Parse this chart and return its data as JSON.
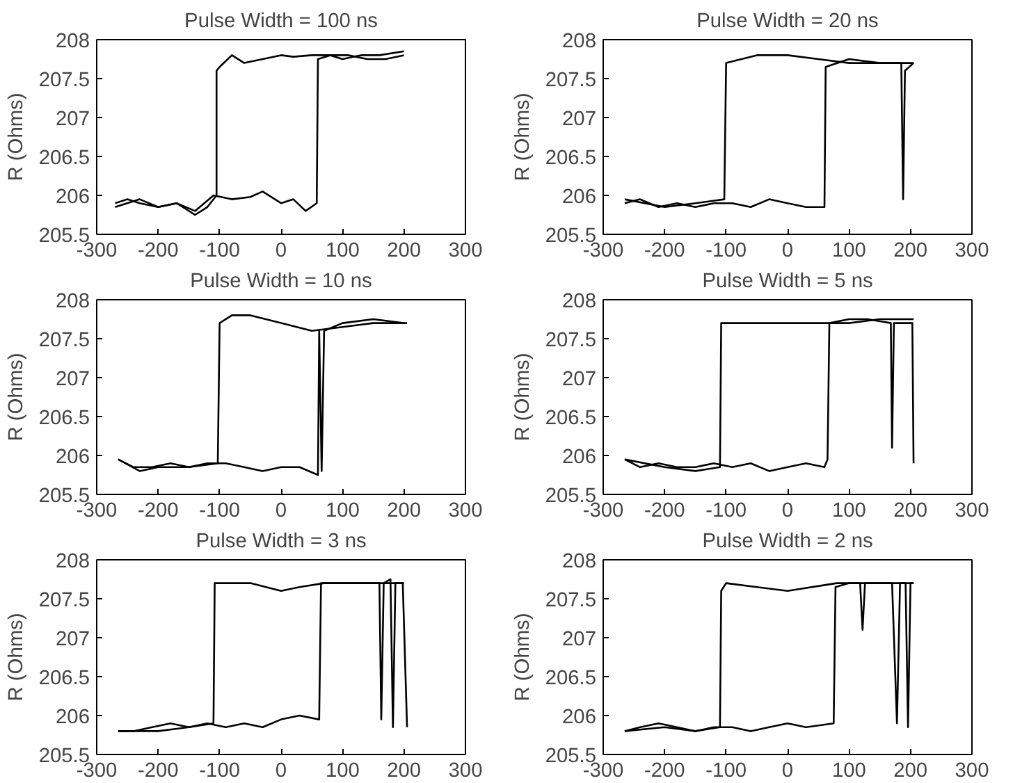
{
  "chart_data": [
    {
      "type": "line",
      "title": "Pulse Width = 100 ns",
      "ylabel": "R (Ohms)",
      "xlim": [
        -300,
        300
      ],
      "ylim": [
        205.5,
        208
      ],
      "xticks": [
        -300,
        -200,
        -100,
        0,
        100,
        200,
        300
      ],
      "yticks": [
        205.5,
        206,
        206.5,
        207,
        207.5,
        208
      ],
      "grid": false,
      "series": [
        {
          "color": "#000000",
          "x": [
            -270,
            -250,
            -230,
            -200,
            -170,
            -140,
            -110,
            -80,
            -50,
            -30,
            0,
            20,
            40,
            58,
            60,
            80,
            100,
            130,
            160,
            200
          ],
          "values": [
            205.9,
            205.95,
            205.9,
            205.85,
            205.9,
            205.8,
            206.0,
            205.95,
            205.98,
            206.05,
            205.9,
            205.95,
            205.8,
            205.9,
            207.75,
            207.8,
            207.75,
            207.8,
            207.8,
            207.85
          ]
        },
        {
          "color": "#000000",
          "x": [
            200,
            170,
            140,
            110,
            80,
            50,
            20,
            0,
            -30,
            -60,
            -80,
            -100,
            -105,
            -105,
            -120,
            -140,
            -170,
            -200,
            -230,
            -270
          ],
          "values": [
            207.8,
            207.75,
            207.75,
            207.8,
            207.8,
            207.8,
            207.78,
            207.8,
            207.75,
            207.7,
            207.8,
            207.65,
            207.6,
            206.0,
            205.85,
            205.75,
            205.9,
            205.85,
            205.95,
            205.85
          ]
        }
      ]
    },
    {
      "type": "line",
      "title": "Pulse Width = 20 ns",
      "ylabel": "R (Ohms)",
      "xlim": [
        -300,
        300
      ],
      "ylim": [
        205.5,
        208
      ],
      "xticks": [
        -300,
        -200,
        -100,
        0,
        100,
        200,
        300
      ],
      "yticks": [
        205.5,
        206,
        206.5,
        207,
        207.5,
        208
      ],
      "grid": false,
      "series": [
        {
          "color": "#000000",
          "x": [
            -265,
            -240,
            -210,
            -180,
            -150,
            -120,
            -90,
            -60,
            -30,
            0,
            30,
            60,
            62,
            100,
            150,
            185,
            188,
            191,
            205
          ],
          "values": [
            205.9,
            205.95,
            205.85,
            205.9,
            205.85,
            205.9,
            205.9,
            205.85,
            205.95,
            205.9,
            205.85,
            205.85,
            207.65,
            207.75,
            207.7,
            207.7,
            205.95,
            207.6,
            207.7
          ]
        },
        {
          "color": "#000000",
          "x": [
            205,
            150,
            100,
            50,
            0,
            -50,
            -100,
            -103,
            -150,
            -200,
            -265
          ],
          "values": [
            207.7,
            207.7,
            207.7,
            207.75,
            207.8,
            207.8,
            207.7,
            205.95,
            205.9,
            205.85,
            205.95
          ]
        }
      ]
    },
    {
      "type": "line",
      "title": "Pulse Width = 10 ns",
      "ylabel": "R (Ohms)",
      "xlim": [
        -300,
        300
      ],
      "ylim": [
        205.5,
        208
      ],
      "xticks": [
        -300,
        -200,
        -100,
        0,
        100,
        200,
        300
      ],
      "yticks": [
        205.5,
        206,
        206.5,
        207,
        207.5,
        208
      ],
      "grid": false,
      "series": [
        {
          "color": "#000000",
          "x": [
            -265,
            -240,
            -210,
            -180,
            -150,
            -120,
            -90,
            -60,
            -30,
            0,
            30,
            60,
            62,
            66,
            70,
            100,
            150,
            200
          ],
          "values": [
            205.95,
            205.85,
            205.85,
            205.9,
            205.85,
            205.9,
            205.9,
            205.85,
            205.8,
            205.85,
            205.85,
            205.75,
            207.6,
            205.8,
            207.6,
            207.7,
            207.75,
            207.7
          ]
        },
        {
          "color": "#000000",
          "x": [
            205,
            150,
            100,
            50,
            0,
            -50,
            -80,
            -100,
            -103,
            -150,
            -200,
            -230,
            -265
          ],
          "values": [
            207.7,
            207.7,
            207.65,
            207.6,
            207.7,
            207.8,
            207.8,
            207.7,
            205.9,
            205.85,
            205.85,
            205.8,
            205.95
          ]
        }
      ]
    },
    {
      "type": "line",
      "title": "Pulse Width = 5 ns",
      "ylabel": "R (Ohms)",
      "xlim": [
        -300,
        300
      ],
      "ylim": [
        205.5,
        208
      ],
      "xticks": [
        -300,
        -200,
        -100,
        0,
        100,
        200,
        300
      ],
      "yticks": [
        205.5,
        206,
        206.5,
        207,
        207.5,
        208
      ],
      "grid": false,
      "series": [
        {
          "color": "#000000",
          "x": [
            -265,
            -240,
            -210,
            -180,
            -150,
            -120,
            -90,
            -60,
            -30,
            0,
            30,
            60,
            65,
            68,
            100,
            130,
            168,
            170,
            173,
            203,
            205
          ],
          "values": [
            205.95,
            205.85,
            205.9,
            205.85,
            205.85,
            205.9,
            205.85,
            205.9,
            205.8,
            205.85,
            205.9,
            205.85,
            205.95,
            207.7,
            207.75,
            207.75,
            207.7,
            206.1,
            207.7,
            207.7,
            205.9
          ]
        },
        {
          "color": "#000000",
          "x": [
            205,
            150,
            100,
            70,
            0,
            -50,
            -100,
            -108,
            -110,
            -150,
            -200,
            -265
          ],
          "values": [
            207.75,
            207.75,
            207.7,
            207.7,
            207.7,
            207.7,
            207.7,
            207.7,
            205.85,
            205.8,
            205.85,
            205.95
          ]
        }
      ]
    },
    {
      "type": "line",
      "title": "Pulse Width = 3 ns",
      "ylabel": "R (Ohms)",
      "xlim": [
        -300,
        300
      ],
      "ylim": [
        205.5,
        208
      ],
      "xticks": [
        -300,
        -200,
        -100,
        0,
        100,
        200,
        300
      ],
      "yticks": [
        205.5,
        206,
        206.5,
        207,
        207.5,
        208
      ],
      "grid": false,
      "series": [
        {
          "color": "#000000",
          "x": [
            -265,
            -240,
            -210,
            -180,
            -150,
            -120,
            -90,
            -60,
            -30,
            0,
            30,
            62,
            65,
            100,
            130,
            160,
            163,
            167,
            178,
            182,
            186,
            198,
            205
          ],
          "values": [
            205.8,
            205.8,
            205.85,
            205.9,
            205.85,
            205.9,
            205.85,
            205.9,
            205.85,
            205.95,
            206.0,
            205.95,
            207.7,
            207.7,
            207.7,
            207.7,
            205.95,
            207.7,
            207.75,
            205.85,
            207.7,
            207.7,
            205.85
          ]
        },
        {
          "color": "#000000",
          "x": [
            200,
            150,
            100,
            70,
            30,
            0,
            -50,
            -100,
            -108,
            -110,
            -150,
            -200,
            -265
          ],
          "values": [
            207.7,
            207.7,
            207.7,
            207.7,
            207.65,
            207.6,
            207.7,
            207.7,
            207.7,
            205.9,
            205.85,
            205.8,
            205.8
          ]
        }
      ]
    },
    {
      "type": "line",
      "title": "Pulse Width = 2 ns",
      "ylabel": "R (Ohms)",
      "xlim": [
        -300,
        300
      ],
      "ylim": [
        205.5,
        208
      ],
      "xticks": [
        -300,
        -200,
        -100,
        0,
        100,
        200,
        300
      ],
      "yticks": [
        205.5,
        206,
        206.5,
        207,
        207.5,
        208
      ],
      "grid": false,
      "series": [
        {
          "color": "#000000",
          "x": [
            -265,
            -240,
            -210,
            -180,
            -150,
            -120,
            -90,
            -60,
            -30,
            0,
            30,
            75,
            78,
            100,
            118,
            122,
            126,
            170,
            178,
            183,
            192,
            196,
            200,
            205
          ],
          "values": [
            205.8,
            205.85,
            205.9,
            205.85,
            205.8,
            205.85,
            205.85,
            205.8,
            205.85,
            205.9,
            205.85,
            205.9,
            207.65,
            207.7,
            207.7,
            207.1,
            207.7,
            207.7,
            205.9,
            207.7,
            207.7,
            205.85,
            207.7,
            207.7
          ]
        },
        {
          "color": "#000000",
          "x": [
            205,
            150,
            80,
            0,
            -50,
            -100,
            -108,
            -110,
            -150,
            -200,
            -265
          ],
          "values": [
            207.7,
            207.7,
            207.7,
            207.6,
            207.65,
            207.7,
            207.6,
            205.85,
            205.8,
            205.85,
            205.8
          ]
        }
      ]
    }
  ]
}
